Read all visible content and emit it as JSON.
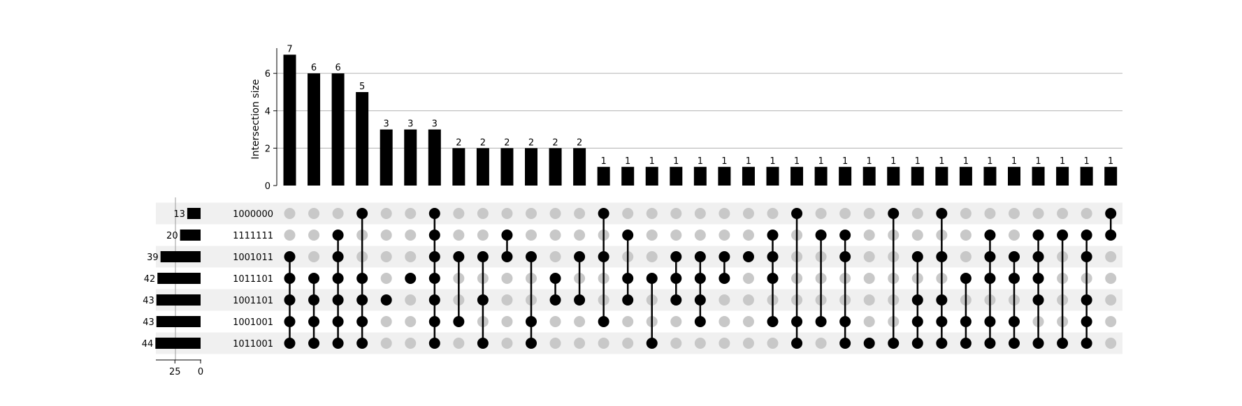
{
  "chart_data": {
    "type": "upset",
    "ylabel": "Intersection size",
    "yticks": [
      0,
      2,
      4,
      6
    ],
    "ylim": [
      0,
      7.35
    ],
    "set_size_ticks": [
      25,
      0
    ],
    "set_size_xlim": [
      0,
      48
    ],
    "grid": true,
    "colors": {
      "bar": "#000000",
      "dot_active": "#000000",
      "dot_inactive": "#c8c8c8",
      "stripe": "#f0f0f0",
      "grid": "#b0b0b0"
    },
    "sets": [
      {
        "name": "1000000",
        "size": 13
      },
      {
        "name": "1111111",
        "size": 20
      },
      {
        "name": "1001011",
        "size": 39
      },
      {
        "name": "1011101",
        "size": 42
      },
      {
        "name": "1001101",
        "size": 43
      },
      {
        "name": "1001001",
        "size": 43
      },
      {
        "name": "1011001",
        "size": 44
      }
    ],
    "intersections": [
      {
        "size": 7,
        "members": [
          2,
          3,
          4,
          5,
          6
        ]
      },
      {
        "size": 6,
        "members": [
          3,
          4,
          5,
          6
        ]
      },
      {
        "size": 6,
        "members": [
          1,
          2,
          3,
          4,
          5,
          6
        ]
      },
      {
        "size": 5,
        "members": [
          0,
          3,
          4,
          5,
          6
        ]
      },
      {
        "size": 3,
        "members": [
          4
        ]
      },
      {
        "size": 3,
        "members": [
          3
        ]
      },
      {
        "size": 3,
        "members": [
          0,
          1,
          2,
          3,
          4,
          5,
          6
        ]
      },
      {
        "size": 2,
        "members": [
          2,
          5
        ]
      },
      {
        "size": 2,
        "members": [
          2,
          4,
          6
        ]
      },
      {
        "size": 2,
        "members": [
          1,
          2
        ]
      },
      {
        "size": 2,
        "members": [
          2,
          5,
          6
        ]
      },
      {
        "size": 2,
        "members": [
          3,
          4
        ]
      },
      {
        "size": 2,
        "members": [
          2,
          4
        ]
      },
      {
        "size": 1,
        "members": [
          0,
          2,
          5
        ]
      },
      {
        "size": 1,
        "members": [
          1,
          3,
          4
        ]
      },
      {
        "size": 1,
        "members": [
          3,
          6
        ]
      },
      {
        "size": 1,
        "members": [
          2,
          3,
          4
        ]
      },
      {
        "size": 1,
        "members": [
          2,
          3,
          4,
          5
        ]
      },
      {
        "size": 1,
        "members": [
          2,
          3
        ]
      },
      {
        "size": 1,
        "members": [
          2
        ]
      },
      {
        "size": 1,
        "members": [
          1,
          2,
          3,
          5
        ]
      },
      {
        "size": 1,
        "members": [
          0,
          5,
          6
        ]
      },
      {
        "size": 1,
        "members": [
          1,
          5
        ]
      },
      {
        "size": 1,
        "members": [
          1,
          2,
          5,
          6
        ]
      },
      {
        "size": 1,
        "members": [
          6
        ]
      },
      {
        "size": 1,
        "members": [
          0,
          6
        ]
      },
      {
        "size": 1,
        "members": [
          2,
          4,
          5,
          6
        ]
      },
      {
        "size": 1,
        "members": [
          0,
          2,
          4,
          5,
          6
        ]
      },
      {
        "size": 1,
        "members": [
          3,
          5,
          6
        ]
      },
      {
        "size": 1,
        "members": [
          1,
          2,
          3,
          5,
          6
        ]
      },
      {
        "size": 1,
        "members": [
          2,
          3,
          5,
          6
        ]
      },
      {
        "size": 1,
        "members": [
          1,
          2,
          3,
          4,
          6
        ]
      },
      {
        "size": 1,
        "members": [
          1,
          6
        ]
      },
      {
        "size": 1,
        "members": [
          1,
          2,
          4,
          5,
          6
        ]
      },
      {
        "size": 1,
        "members": [
          0,
          1
        ]
      }
    ]
  }
}
